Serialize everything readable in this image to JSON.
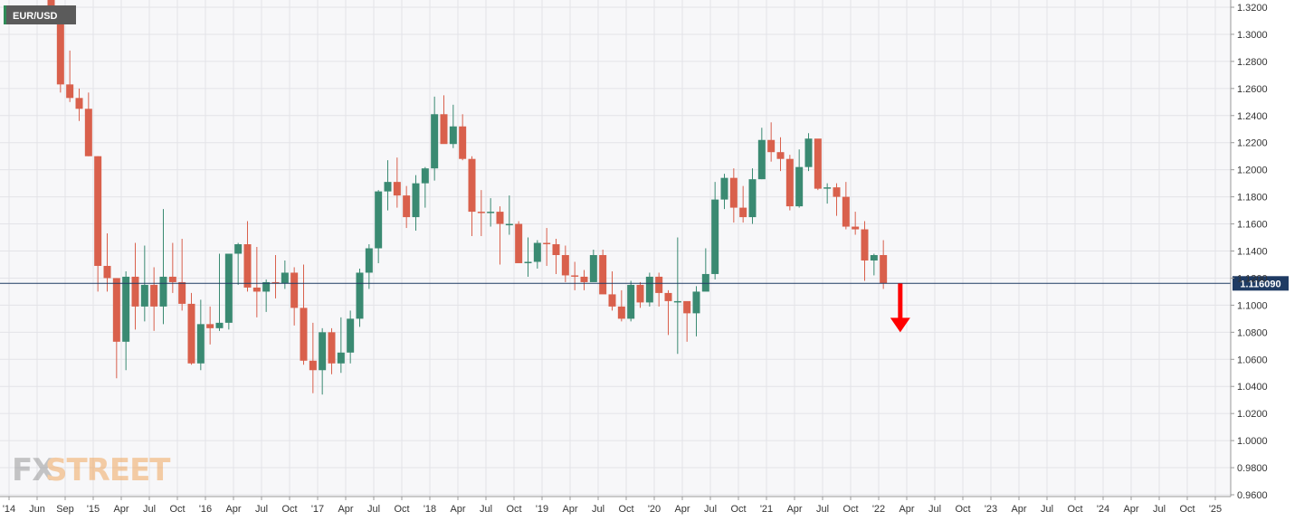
{
  "chart_data": {
    "type": "candlestick",
    "symbol": "EUR/USD",
    "timeframe": "monthly",
    "last_price": 1.11609,
    "last_price_label": "1.116090",
    "ylim": [
      0.96,
      1.32
    ],
    "y_ticks": [
      "1.3200",
      "1.3000",
      "1.2800",
      "1.2600",
      "1.2400",
      "1.2200",
      "1.2000",
      "1.1800",
      "1.1600",
      "1.1400",
      "1.1200",
      "1.1000",
      "1.0800",
      "1.0600",
      "1.0400",
      "1.0200",
      "1.0000",
      "0.9800",
      "0.9600"
    ],
    "x_ticks": [
      "'14",
      "Jun",
      "Sep",
      "'15",
      "Apr",
      "Jul",
      "Oct",
      "'16",
      "Apr",
      "Jul",
      "Oct",
      "'17",
      "Apr",
      "Jul",
      "Oct",
      "'18",
      "Apr",
      "Jul",
      "Oct",
      "'19",
      "Apr",
      "Jul",
      "Oct",
      "'20",
      "Apr",
      "Jul",
      "Oct",
      "'21",
      "Apr",
      "Jul",
      "Oct",
      "'22",
      "Apr",
      "Jul",
      "Oct",
      "'23",
      "Apr",
      "Jul",
      "Oct",
      "'24",
      "Apr",
      "Jul",
      "Oct",
      "'25"
    ],
    "grid": true,
    "up_color": "#3a8a72",
    "down_color": "#d9604c",
    "annotation": {
      "type": "arrow-down",
      "color": "#ff0000",
      "from": 1.116,
      "to": 1.08
    },
    "candles": [
      {
        "d": "2014-08",
        "o": 1.339,
        "h": 1.3444,
        "l": 1.315,
        "c": 1.313
      },
      {
        "d": "2014-09",
        "o": 1.313,
        "h": 1.32,
        "l": 1.257,
        "c": 1.263
      },
      {
        "d": "2014-10",
        "o": 1.263,
        "h": 1.288,
        "l": 1.25,
        "c": 1.253
      },
      {
        "d": "2014-11",
        "o": 1.253,
        "h": 1.26,
        "l": 1.236,
        "c": 1.245
      },
      {
        "d": "2014-12",
        "o": 1.245,
        "h": 1.257,
        "l": 1.21,
        "c": 1.21
      },
      {
        "d": "2015-01",
        "o": 1.21,
        "h": 1.21,
        "l": 1.11,
        "c": 1.129
      },
      {
        "d": "2015-02",
        "o": 1.129,
        "h": 1.153,
        "l": 1.11,
        "c": 1.12
      },
      {
        "d": "2015-03",
        "o": 1.12,
        "h": 1.12,
        "l": 1.046,
        "c": 1.073
      },
      {
        "d": "2015-04",
        "o": 1.073,
        "h": 1.125,
        "l": 1.052,
        "c": 1.121
      },
      {
        "d": "2015-05",
        "o": 1.121,
        "h": 1.146,
        "l": 1.082,
        "c": 1.099
      },
      {
        "d": "2015-06",
        "o": 1.099,
        "h": 1.144,
        "l": 1.088,
        "c": 1.115
      },
      {
        "d": "2015-07",
        "o": 1.115,
        "h": 1.128,
        "l": 1.081,
        "c": 1.099
      },
      {
        "d": "2015-08",
        "o": 1.099,
        "h": 1.171,
        "l": 1.086,
        "c": 1.121
      },
      {
        "d": "2015-09",
        "o": 1.121,
        "h": 1.146,
        "l": 1.109,
        "c": 1.117
      },
      {
        "d": "2015-10",
        "o": 1.117,
        "h": 1.149,
        "l": 1.096,
        "c": 1.101
      },
      {
        "d": "2015-11",
        "o": 1.101,
        "h": 1.109,
        "l": 1.056,
        "c": 1.057
      },
      {
        "d": "2015-12",
        "o": 1.057,
        "h": 1.104,
        "l": 1.052,
        "c": 1.086
      },
      {
        "d": "2016-01",
        "o": 1.086,
        "h": 1.099,
        "l": 1.071,
        "c": 1.083
      },
      {
        "d": "2016-02",
        "o": 1.083,
        "h": 1.138,
        "l": 1.081,
        "c": 1.087
      },
      {
        "d": "2016-03",
        "o": 1.087,
        "h": 1.138,
        "l": 1.082,
        "c": 1.138
      },
      {
        "d": "2016-04",
        "o": 1.138,
        "h": 1.146,
        "l": 1.115,
        "c": 1.145
      },
      {
        "d": "2016-05",
        "o": 1.145,
        "h": 1.162,
        "l": 1.11,
        "c": 1.113
      },
      {
        "d": "2016-06",
        "o": 1.113,
        "h": 1.143,
        "l": 1.091,
        "c": 1.11
      },
      {
        "d": "2016-07",
        "o": 1.11,
        "h": 1.119,
        "l": 1.095,
        "c": 1.117
      },
      {
        "d": "2016-08",
        "o": 1.117,
        "h": 1.137,
        "l": 1.105,
        "c": 1.116
      },
      {
        "d": "2016-09",
        "o": 1.116,
        "h": 1.133,
        "l": 1.112,
        "c": 1.124
      },
      {
        "d": "2016-10",
        "o": 1.124,
        "h": 1.128,
        "l": 1.085,
        "c": 1.098
      },
      {
        "d": "2016-11",
        "o": 1.098,
        "h": 1.13,
        "l": 1.056,
        "c": 1.059
      },
      {
        "d": "2016-12",
        "o": 1.059,
        "h": 1.087,
        "l": 1.035,
        "c": 1.052
      },
      {
        "d": "2017-01",
        "o": 1.052,
        "h": 1.083,
        "l": 1.034,
        "c": 1.08
      },
      {
        "d": "2017-02",
        "o": 1.08,
        "h": 1.083,
        "l": 1.049,
        "c": 1.057
      },
      {
        "d": "2017-03",
        "o": 1.057,
        "h": 1.091,
        "l": 1.05,
        "c": 1.065
      },
      {
        "d": "2017-04",
        "o": 1.065,
        "h": 1.096,
        "l": 1.057,
        "c": 1.09
      },
      {
        "d": "2017-05",
        "o": 1.09,
        "h": 1.127,
        "l": 1.084,
        "c": 1.124
      },
      {
        "d": "2017-06",
        "o": 1.124,
        "h": 1.145,
        "l": 1.112,
        "c": 1.142
      },
      {
        "d": "2017-07",
        "o": 1.142,
        "h": 1.185,
        "l": 1.131,
        "c": 1.184
      },
      {
        "d": "2017-08",
        "o": 1.184,
        "h": 1.207,
        "l": 1.17,
        "c": 1.191
      },
      {
        "d": "2017-09",
        "o": 1.191,
        "h": 1.209,
        "l": 1.172,
        "c": 1.181
      },
      {
        "d": "2017-10",
        "o": 1.181,
        "h": 1.188,
        "l": 1.157,
        "c": 1.165
      },
      {
        "d": "2017-11",
        "o": 1.165,
        "h": 1.196,
        "l": 1.155,
        "c": 1.19
      },
      {
        "d": "2017-12",
        "o": 1.19,
        "h": 1.202,
        "l": 1.172,
        "c": 1.201
      },
      {
        "d": "2018-01",
        "o": 1.201,
        "h": 1.254,
        "l": 1.192,
        "c": 1.241
      },
      {
        "d": "2018-02",
        "o": 1.241,
        "h": 1.255,
        "l": 1.22,
        "c": 1.219
      },
      {
        "d": "2018-03",
        "o": 1.219,
        "h": 1.248,
        "l": 1.216,
        "c": 1.232
      },
      {
        "d": "2018-04",
        "o": 1.232,
        "h": 1.241,
        "l": 1.207,
        "c": 1.208
      },
      {
        "d": "2018-05",
        "o": 1.208,
        "h": 1.21,
        "l": 1.151,
        "c": 1.169
      },
      {
        "d": "2018-06",
        "o": 1.169,
        "h": 1.185,
        "l": 1.151,
        "c": 1.168
      },
      {
        "d": "2018-07",
        "o": 1.168,
        "h": 1.179,
        "l": 1.158,
        "c": 1.169
      },
      {
        "d": "2018-08",
        "o": 1.169,
        "h": 1.173,
        "l": 1.13,
        "c": 1.16
      },
      {
        "d": "2018-09",
        "o": 1.16,
        "h": 1.181,
        "l": 1.152,
        "c": 1.16
      },
      {
        "d": "2018-10",
        "o": 1.16,
        "h": 1.162,
        "l": 1.132,
        "c": 1.131
      },
      {
        "d": "2018-11",
        "o": 1.131,
        "h": 1.15,
        "l": 1.121,
        "c": 1.132
      },
      {
        "d": "2018-12",
        "o": 1.132,
        "h": 1.148,
        "l": 1.127,
        "c": 1.146
      },
      {
        "d": "2019-01",
        "o": 1.146,
        "h": 1.157,
        "l": 1.129,
        "c": 1.145
      },
      {
        "d": "2019-02",
        "o": 1.145,
        "h": 1.149,
        "l": 1.123,
        "c": 1.137
      },
      {
        "d": "2019-03",
        "o": 1.137,
        "h": 1.144,
        "l": 1.117,
        "c": 1.122
      },
      {
        "d": "2019-04",
        "o": 1.122,
        "h": 1.132,
        "l": 1.111,
        "c": 1.121
      },
      {
        "d": "2019-05",
        "o": 1.121,
        "h": 1.126,
        "l": 1.111,
        "c": 1.117
      },
      {
        "d": "2019-06",
        "o": 1.117,
        "h": 1.141,
        "l": 1.118,
        "c": 1.137
      },
      {
        "d": "2019-07",
        "o": 1.137,
        "h": 1.141,
        "l": 1.109,
        "c": 1.108
      },
      {
        "d": "2019-08",
        "o": 1.108,
        "h": 1.125,
        "l": 1.096,
        "c": 1.099
      },
      {
        "d": "2019-09",
        "o": 1.099,
        "h": 1.111,
        "l": 1.088,
        "c": 1.09
      },
      {
        "d": "2019-10",
        "o": 1.09,
        "h": 1.118,
        "l": 1.088,
        "c": 1.115
      },
      {
        "d": "2019-11",
        "o": 1.115,
        "h": 1.117,
        "l": 1.098,
        "c": 1.102
      },
      {
        "d": "2019-12",
        "o": 1.102,
        "h": 1.124,
        "l": 1.099,
        "c": 1.121
      },
      {
        "d": "2020-01",
        "o": 1.121,
        "h": 1.124,
        "l": 1.099,
        "c": 1.109
      },
      {
        "d": "2020-02",
        "o": 1.109,
        "h": 1.111,
        "l": 1.078,
        "c": 1.103
      },
      {
        "d": "2020-03",
        "o": 1.103,
        "h": 1.15,
        "l": 1.064,
        "c": 1.103
      },
      {
        "d": "2020-04",
        "o": 1.103,
        "h": 1.102,
        "l": 1.073,
        "c": 1.094
      },
      {
        "d": "2020-05",
        "o": 1.094,
        "h": 1.114,
        "l": 1.077,
        "c": 1.11
      },
      {
        "d": "2020-06",
        "o": 1.11,
        "h": 1.142,
        "l": 1.112,
        "c": 1.123
      },
      {
        "d": "2020-07",
        "o": 1.123,
        "h": 1.191,
        "l": 1.119,
        "c": 1.178
      },
      {
        "d": "2020-08",
        "o": 1.178,
        "h": 1.197,
        "l": 1.171,
        "c": 1.194
      },
      {
        "d": "2020-09",
        "o": 1.194,
        "h": 1.201,
        "l": 1.161,
        "c": 1.172
      },
      {
        "d": "2020-10",
        "o": 1.172,
        "h": 1.188,
        "l": 1.161,
        "c": 1.165
      },
      {
        "d": "2020-11",
        "o": 1.165,
        "h": 1.201,
        "l": 1.16,
        "c": 1.193
      },
      {
        "d": "2020-12",
        "o": 1.193,
        "h": 1.231,
        "l": 1.193,
        "c": 1.222
      },
      {
        "d": "2021-01",
        "o": 1.222,
        "h": 1.235,
        "l": 1.206,
        "c": 1.213
      },
      {
        "d": "2021-02",
        "o": 1.213,
        "h": 1.224,
        "l": 1.199,
        "c": 1.208
      },
      {
        "d": "2021-03",
        "o": 1.208,
        "h": 1.211,
        "l": 1.17,
        "c": 1.173
      },
      {
        "d": "2021-04",
        "o": 1.173,
        "h": 1.215,
        "l": 1.172,
        "c": 1.202
      },
      {
        "d": "2021-05",
        "o": 1.202,
        "h": 1.227,
        "l": 1.199,
        "c": 1.223
      },
      {
        "d": "2021-06",
        "o": 1.223,
        "h": 1.222,
        "l": 1.185,
        "c": 1.186
      },
      {
        "d": "2021-07",
        "o": 1.186,
        "h": 1.19,
        "l": 1.175,
        "c": 1.187
      },
      {
        "d": "2021-08",
        "o": 1.187,
        "h": 1.19,
        "l": 1.166,
        "c": 1.18
      },
      {
        "d": "2021-09",
        "o": 1.18,
        "h": 1.191,
        "l": 1.156,
        "c": 1.158
      },
      {
        "d": "2021-10",
        "o": 1.158,
        "h": 1.169,
        "l": 1.152,
        "c": 1.156
      },
      {
        "d": "2021-11",
        "o": 1.156,
        "h": 1.162,
        "l": 1.118,
        "c": 1.133
      },
      {
        "d": "2021-12",
        "o": 1.133,
        "h": 1.138,
        "l": 1.122,
        "c": 1.137
      },
      {
        "d": "2022-01",
        "o": 1.137,
        "h": 1.148,
        "l": 1.112,
        "c": 1.1161
      }
    ]
  }
}
